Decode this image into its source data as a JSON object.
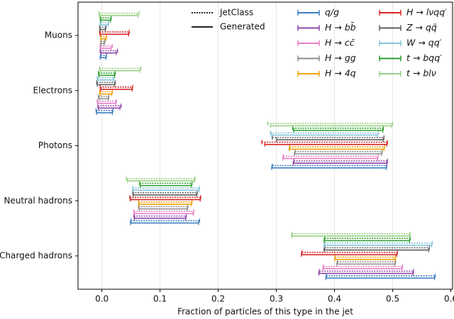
{
  "chart_data": {
    "type": "range",
    "xlabel": "Fraction of particles of this type in the jet",
    "categories": [
      "Muons",
      "Electrons",
      "Photons",
      "Neutral hadrons",
      "Charged hadrons"
    ],
    "xlim": [
      -0.041,
      0.603
    ],
    "xticks": [
      {
        "value": 0,
        "label": "0.0"
      },
      0.1,
      0.2,
      0.3,
      0.4,
      0.5,
      0.6
    ],
    "grid": true,
    "styles": [
      {
        "name": "JetClass",
        "key": "jetclass",
        "dash": "dotted"
      },
      {
        "name": "Generated",
        "key": "generated",
        "dash": "solid"
      }
    ],
    "series": [
      {
        "name": "q/g",
        "color": "#3f7fbf",
        "jetclass": [
          [
            -0.002,
            0.008
          ],
          [
            -0.01,
            0.019
          ],
          [
            0.293,
            0.49
          ],
          [
            0.05,
            0.168
          ],
          [
            0.386,
            0.573
          ]
        ],
        "generated": [
          [
            -0.003,
            0.007
          ],
          [
            -0.009,
            0.018
          ],
          [
            0.292,
            0.489
          ],
          [
            0.049,
            0.166
          ],
          [
            0.385,
            0.572
          ]
        ]
      },
      {
        "name": "H → bb̄",
        "color": "#8e44a8",
        "jetclass": [
          [
            -0.003,
            0.027
          ],
          [
            -0.007,
            0.033
          ],
          [
            0.33,
            0.491
          ],
          [
            0.055,
            0.145
          ],
          [
            0.374,
            0.536
          ]
        ],
        "generated": [
          [
            -0.002,
            0.025
          ],
          [
            -0.006,
            0.031
          ],
          [
            0.329,
            0.49
          ],
          [
            0.056,
            0.144
          ],
          [
            0.373,
            0.535
          ]
        ]
      },
      {
        "name": "H → cc̄",
        "color": "#e680c8",
        "jetclass": [
          [
            -0.003,
            0.018
          ],
          [
            -0.008,
            0.025
          ],
          [
            0.312,
            0.475
          ],
          [
            0.055,
            0.158
          ],
          [
            0.381,
            0.517
          ]
        ],
        "generated": [
          [
            -0.002,
            0.016
          ],
          [
            -0.007,
            0.024
          ],
          [
            0.311,
            0.474
          ],
          [
            0.056,
            0.157
          ],
          [
            0.38,
            0.516
          ]
        ]
      },
      {
        "name": "H → gg",
        "color": "#8c8c8c",
        "jetclass": [
          [
            -0.002,
            0.005
          ],
          [
            -0.006,
            0.012
          ],
          [
            0.332,
            0.482
          ],
          [
            0.063,
            0.148
          ],
          [
            0.405,
            0.505
          ]
        ],
        "generated": [
          [
            -0.002,
            0.004
          ],
          [
            -0.005,
            0.011
          ],
          [
            0.331,
            0.481
          ],
          [
            0.064,
            0.147
          ],
          [
            0.404,
            0.504
          ]
        ]
      },
      {
        "name": "H → 4q",
        "color": "#f0a30a",
        "jetclass": [
          [
            -0.002,
            0.008
          ],
          [
            -0.004,
            0.018
          ],
          [
            0.323,
            0.486
          ],
          [
            0.063,
            0.155
          ],
          [
            0.401,
            0.505
          ]
        ],
        "generated": [
          [
            -0.002,
            0.007
          ],
          [
            -0.003,
            0.017
          ],
          [
            0.322,
            0.485
          ],
          [
            0.064,
            0.154
          ],
          [
            0.4,
            0.504
          ]
        ]
      },
      {
        "name": "H → lνqq′",
        "color": "#d62728",
        "jetclass": [
          [
            -0.004,
            0.047
          ],
          [
            -0.003,
            0.053
          ],
          [
            0.275,
            0.491
          ],
          [
            0.048,
            0.17
          ],
          [
            0.344,
            0.508
          ]
        ],
        "generated": [
          [
            -0.003,
            0.046
          ],
          [
            -0.002,
            0.052
          ],
          [
            0.28,
            0.49
          ],
          [
            0.049,
            0.169
          ],
          [
            0.343,
            0.507
          ]
        ]
      },
      {
        "name": "Z → qq̄",
        "color": "#5e5e5e",
        "jetclass": [
          [
            -0.004,
            0.007
          ],
          [
            -0.009,
            0.023
          ],
          [
            0.293,
            0.485
          ],
          [
            0.053,
            0.164
          ],
          [
            0.383,
            0.563
          ]
        ],
        "generated": [
          [
            -0.003,
            0.006
          ],
          [
            -0.008,
            0.022
          ],
          [
            0.3,
            0.484
          ],
          [
            0.054,
            0.163
          ],
          [
            0.382,
            0.562
          ]
        ]
      },
      {
        "name": "W → qq′",
        "color": "#86c5da",
        "jetclass": [
          [
            -0.003,
            0.012
          ],
          [
            -0.008,
            0.021
          ],
          [
            0.29,
            0.475
          ],
          [
            0.053,
            0.168
          ],
          [
            0.383,
            0.568
          ]
        ],
        "generated": [
          [
            -0.002,
            0.011
          ],
          [
            -0.007,
            0.02
          ],
          [
            0.292,
            0.474
          ],
          [
            0.054,
            0.167
          ],
          [
            0.382,
            0.567
          ]
        ]
      },
      {
        "name": "t → bqq′",
        "color": "#2ca02c",
        "jetclass": [
          [
            -0.003,
            0.016
          ],
          [
            -0.006,
            0.023
          ],
          [
            0.328,
            0.484
          ],
          [
            0.065,
            0.155
          ],
          [
            0.383,
            0.53
          ]
        ],
        "generated": [
          [
            -0.002,
            0.015
          ],
          [
            -0.005,
            0.022
          ],
          [
            0.33,
            0.483
          ],
          [
            0.066,
            0.154
          ],
          [
            0.382,
            0.529
          ]
        ]
      },
      {
        "name": "t → blν",
        "color": "#98d085",
        "jetclass": [
          [
            -0.005,
            0.064
          ],
          [
            -0.004,
            0.067
          ],
          [
            0.285,
            0.5
          ],
          [
            0.042,
            0.16
          ],
          [
            0.327,
            0.53
          ]
        ],
        "generated": [
          [
            -0.004,
            0.062
          ],
          [
            -0.003,
            0.065
          ],
          [
            0.29,
            0.498
          ],
          [
            0.044,
            0.159
          ],
          [
            0.326,
            0.529
          ]
        ]
      }
    ]
  }
}
